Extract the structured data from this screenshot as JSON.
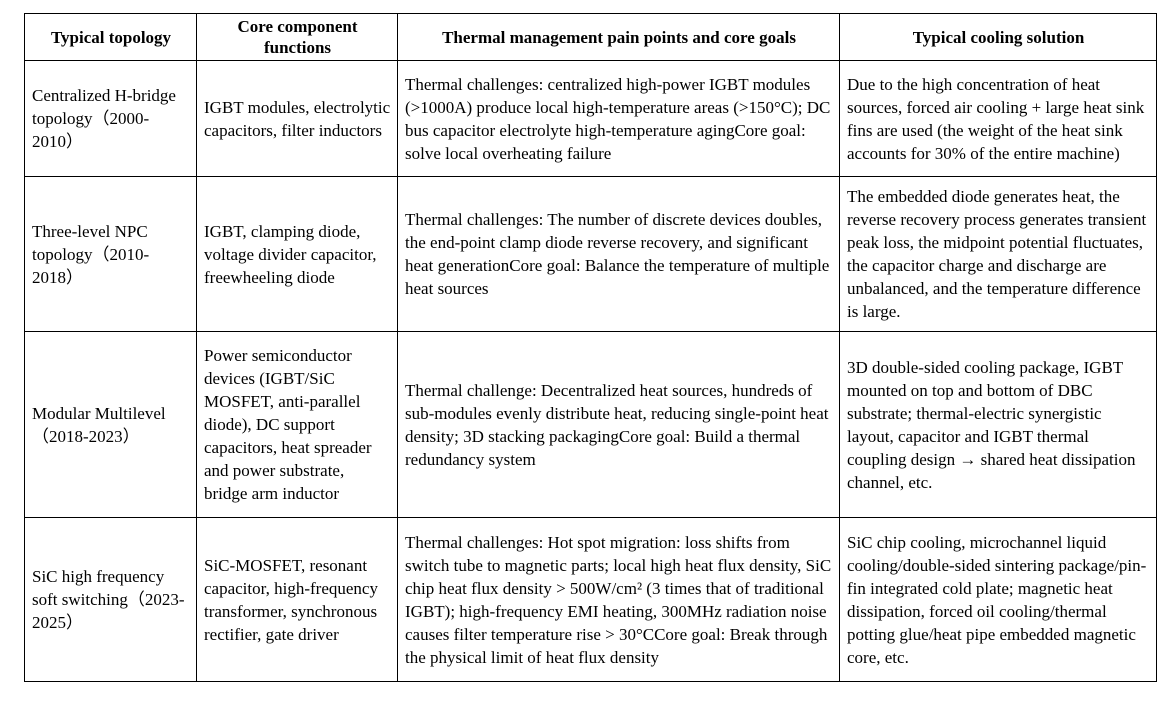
{
  "table": {
    "header": [
      "Typical topology",
      "Core component functions",
      "Thermal management pain points and core goals",
      "Typical cooling solution"
    ],
    "rows": [
      [
        "Centralized H-bridge topology（2000-2010）",
        "IGBT modules, electrolytic capacitors, filter inductors",
        "Thermal challenges: centralized high-power IGBT modules (>1000A) produce local high-temperature areas (>150°C); DC bus capacitor electrolyte high-temperature agingCore goal: solve local overheating failure",
        "Due to the high concentration of heat sources, forced air cooling + large heat sink fins are used (the weight of the heat sink accounts for 30% of the entire machine)"
      ],
      [
        "Three-level NPC topology（2010-2018）",
        "IGBT, clamping diode, voltage divider capacitor, freewheeling diode",
        "Thermal challenges: The number of discrete devices doubles, the end-point clamp diode reverse recovery, and significant heat generationCore goal: Balance the temperature of multiple heat sources",
        "The embedded diode generates heat, the reverse recovery process generates transient peak loss, the midpoint potential fluctuates, the capacitor charge and discharge are unbalanced, and the temperature difference is large."
      ],
      [
        "Modular Multilevel（2018-2023）",
        "Power semiconductor devices (IGBT/SiC MOSFET, anti-parallel diode), DC support capacitors, heat spreader and power substrate, bridge arm inductor",
        "Thermal challenge: Decentralized heat sources, hundreds of sub-modules evenly distribute heat, reducing single-point heat density; 3D stacking packagingCore goal: Build a thermal redundancy system",
        "3D double-sided cooling package, IGBT mounted on top and bottom of DBC substrate; thermal-electric synergistic layout, capacitor and IGBT thermal coupling design → shared heat dissipation channel, etc."
      ],
      [
        "SiC high frequency soft switching（2023-2025）",
        "SiC-MOSFET, resonant capacitor, high-frequency transformer, synchronous rectifier, gate driver",
        "Thermal challenges: Hot spot migration: loss shifts from switch tube to magnetic parts; local high heat flux density, SiC chip heat flux density > 500W/cm² (3 times that of traditional IGBT); high-frequency EMI heating, 300MHz radiation noise causes filter temperature rise > 30°CCore goal: Break through the physical limit of heat flux density",
        "SiC chip cooling, microchannel liquid cooling/double-sided sintering package/pin-fin integrated cold plate; magnetic heat dissipation, forced oil cooling/thermal potting glue/heat pipe embedded magnetic core, etc."
      ]
    ]
  }
}
